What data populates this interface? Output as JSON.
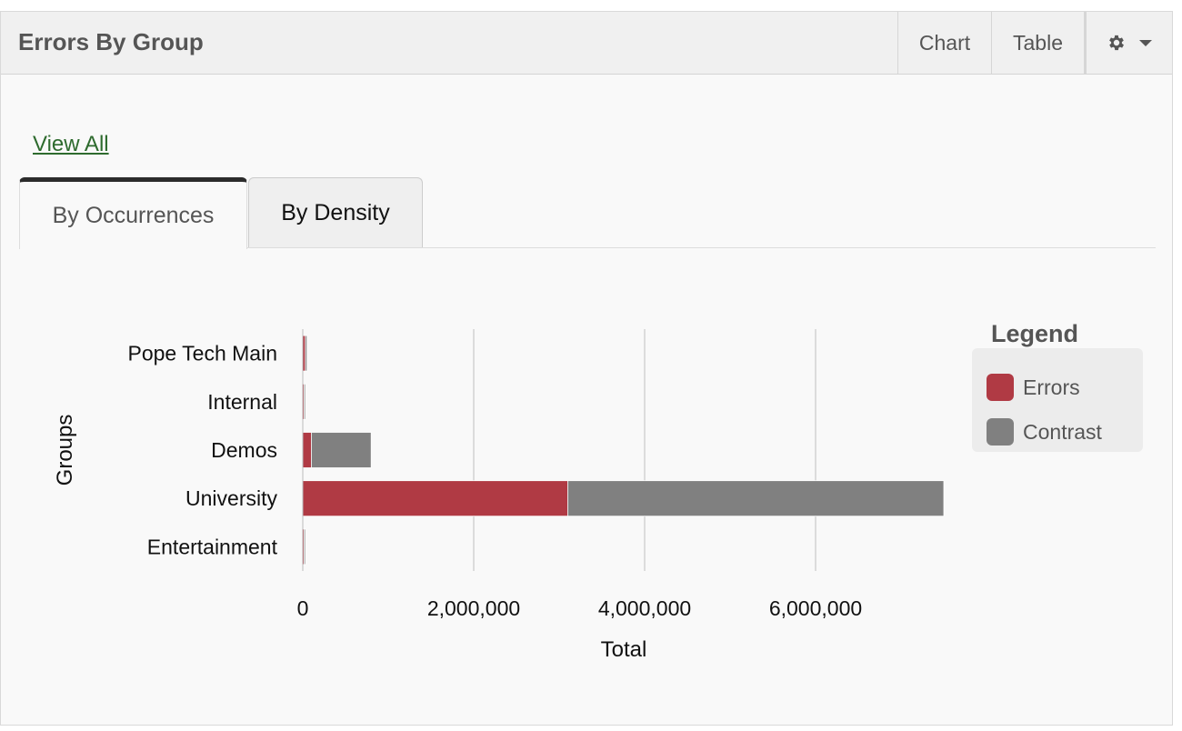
{
  "header": {
    "title": "Errors By Group",
    "chart_label": "Chart",
    "table_label": "Table"
  },
  "view_all_label": "View All",
  "tabs": [
    {
      "label": "By Occurrences",
      "active": true
    },
    {
      "label": "By Density",
      "active": false
    }
  ],
  "colors": {
    "errors": "#b03a44",
    "contrast": "#808080"
  },
  "icons": {
    "settings": "gear-icon",
    "dropdown": "caret-down-icon"
  },
  "chart_data": {
    "type": "bar",
    "orientation": "horizontal",
    "stacked": true,
    "categories": [
      "Pope Tech Main",
      "Internal",
      "Demos",
      "University",
      "Entertainment"
    ],
    "series": [
      {
        "name": "Errors",
        "values": [
          30000,
          15000,
          100000,
          3100000,
          15000
        ]
      },
      {
        "name": "Contrast",
        "values": [
          20000,
          10000,
          700000,
          4400000,
          10000
        ]
      }
    ],
    "xlabel": "Total",
    "ylabel": "Groups",
    "xlim": [
      0,
      7500000
    ],
    "xticks": [
      0,
      2000000,
      4000000,
      6000000
    ],
    "xtick_labels": [
      "0",
      "2,000,000",
      "4,000,000",
      "6,000,000"
    ],
    "grid": true,
    "legend_title": "Legend",
    "legend_position": "right"
  }
}
